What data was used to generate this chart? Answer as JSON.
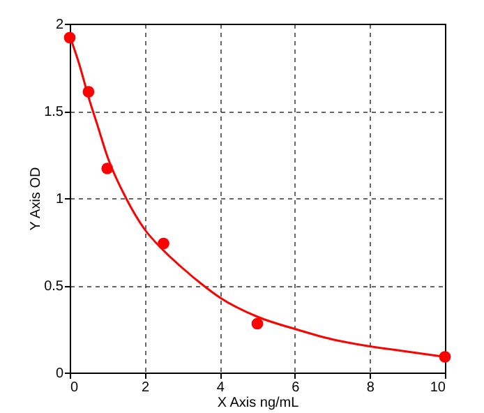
{
  "chart_data": {
    "type": "scatter",
    "xlabel": "X Axis ng/mL",
    "ylabel": "Y Axis OD",
    "xlim": [
      0,
      10
    ],
    "ylim": [
      0,
      2
    ],
    "xticks": [
      0,
      2,
      4,
      6,
      8,
      10
    ],
    "yticks": [
      0,
      0.5,
      1,
      1.5,
      2
    ],
    "grid": true,
    "marker": "circle",
    "series": [
      {
        "color": "#ff0000",
        "x": [
          0,
          0.5,
          1,
          2.5,
          5,
          10
        ],
        "values": [
          1.92,
          1.61,
          1.17,
          0.74,
          0.28,
          0.09
        ]
      },
      {
        "type": "line",
        "color": "#ff0000",
        "marker": "none",
        "x": [
          0,
          0.25,
          0.5,
          0.75,
          1,
          1.5,
          2,
          2.5,
          3,
          3.5,
          4,
          5,
          6,
          7,
          8,
          9,
          10
        ],
        "values": [
          1.93,
          1.77,
          1.58,
          1.41,
          1.24,
          1.0,
          0.82,
          0.7,
          0.6,
          0.51,
          0.43,
          0.32,
          0.25,
          0.19,
          0.15,
          0.12,
          0.09
        ]
      }
    ]
  }
}
